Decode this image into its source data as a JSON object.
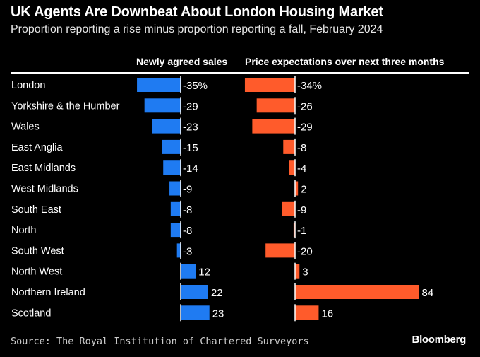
{
  "title": "UK Agents Are Downbeat About London Housing Market",
  "subtitle": "Proportion reporting a rise minus proportion reporting a fall, February 2024",
  "source": "Source: The Royal Institution of Chartered Surveyors",
  "logo": "Bloomberg",
  "chart_data": {
    "type": "bar",
    "orientation": "horizontal",
    "unit": "%",
    "categories": [
      "London",
      "Yorkshire & the Humber",
      "Wales",
      "East Anglia",
      "East Midlands",
      "West Midlands",
      "South East",
      "North",
      "South West",
      "North West",
      "Northern Ireland",
      "Scotland"
    ],
    "series": [
      {
        "name": "Newly agreed sales",
        "color": "#1f7bf2",
        "values": [
          -35,
          -29,
          -23,
          -15,
          -14,
          -9,
          -8,
          -8,
          -3,
          12,
          22,
          23
        ]
      },
      {
        "name": "Price expectations over next three months",
        "color": "#ff5b2b",
        "values": [
          -34,
          -26,
          -29,
          -8,
          -4,
          2,
          -9,
          -1,
          -20,
          3,
          84,
          16
        ]
      }
    ]
  }
}
